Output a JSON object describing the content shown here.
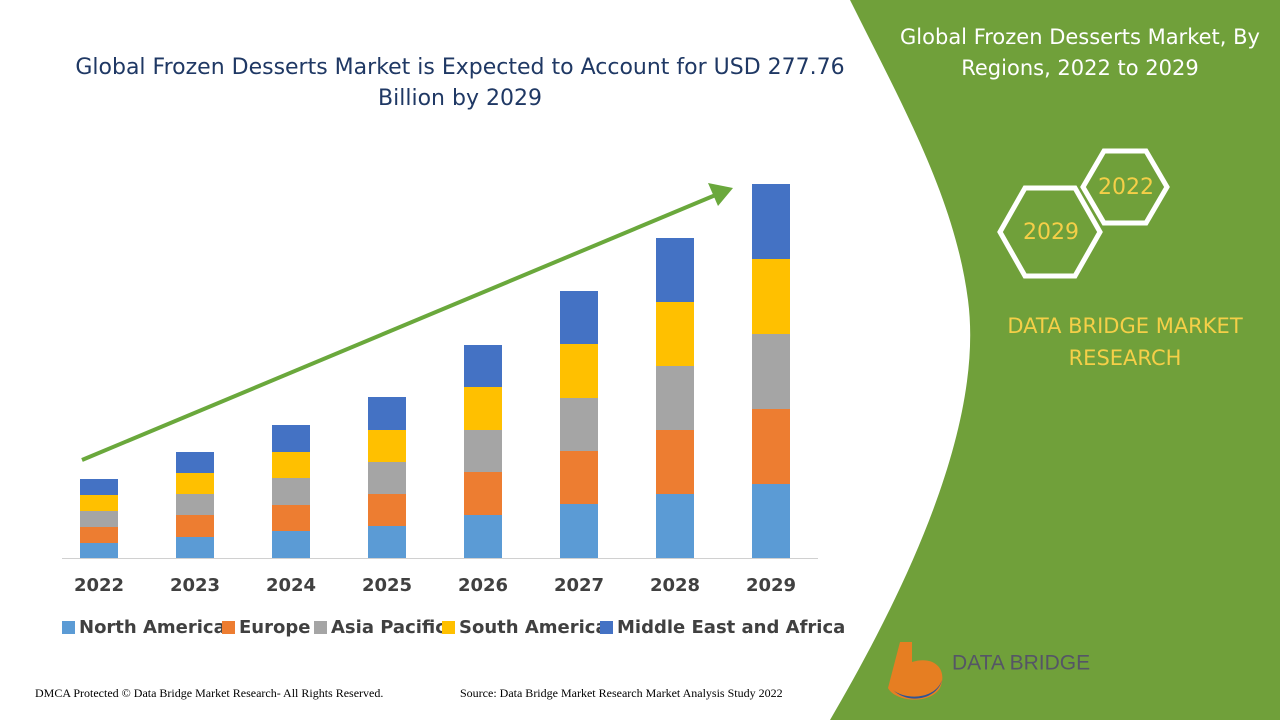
{
  "chart_data": {
    "type": "bar",
    "stacked": true,
    "title": "Global Frozen Desserts Market is Expected to Account for USD 277.76 Billion by 2029",
    "categories": [
      "2022",
      "2023",
      "2024",
      "2025",
      "2026",
      "2027",
      "2028",
      "2029"
    ],
    "series": [
      {
        "name": "North America",
        "color": "#5b9bd5",
        "values": [
          15,
          21,
          27,
          32,
          43,
          54,
          64,
          74
        ]
      },
      {
        "name": "Europe",
        "color": "#ed7d31",
        "values": [
          16,
          22,
          26,
          32,
          43,
          53,
          64,
          75
        ]
      },
      {
        "name": "Asia Pacific",
        "color": "#a5a5a5",
        "values": [
          16,
          21,
          27,
          32,
          42,
          53,
          64,
          75
        ]
      },
      {
        "name": "South America",
        "color": "#ffc000",
        "values": [
          16,
          21,
          26,
          32,
          43,
          54,
          64,
          75
        ]
      },
      {
        "name": "Middle East and Africa",
        "color": "#4472c4",
        "values": [
          16,
          21,
          27,
          33,
          42,
          53,
          64,
          75
        ]
      }
    ]
  },
  "panel": {
    "title": "Global Frozen Desserts Market, By Regions, 2022 to 2029",
    "hexagons": [
      "2022",
      "2029"
    ],
    "brand": "DATA BRIDGE MARKET RESEARCH"
  },
  "logo": "DATA BRIDGE",
  "footer": {
    "left": "DMCA Protected © Data Bridge Market Research- All Rights Reserved.",
    "right": "Source: Data Bridge Market Research Market Analysis Study 2022"
  }
}
